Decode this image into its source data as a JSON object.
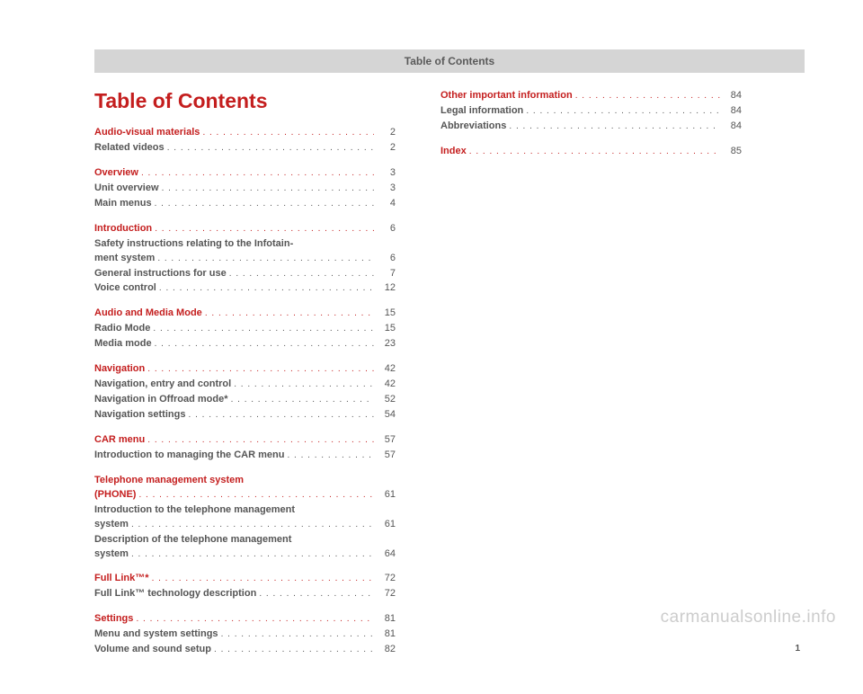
{
  "header": "Table of Contents",
  "title": "Table of Contents",
  "watermark": "carmanualsonline.info",
  "corner_page": "1",
  "colors": {
    "accent": "#c41e1e",
    "text": "#555555",
    "header_bg": "#d5d5d5"
  },
  "col1": [
    {
      "type": "section",
      "label": "Audio-visual materials",
      "page": "2"
    },
    {
      "type": "sub",
      "label": "Related videos",
      "page": "2"
    },
    {
      "type": "gap"
    },
    {
      "type": "section",
      "label": "Overview",
      "page": "3"
    },
    {
      "type": "sub",
      "label": "Unit overview",
      "page": "3"
    },
    {
      "type": "sub",
      "label": "Main menus",
      "page": "4"
    },
    {
      "type": "gap"
    },
    {
      "type": "section",
      "label": "Introduction",
      "page": "6"
    },
    {
      "type": "multiline",
      "line1": "Safety instructions relating to the Infotain-",
      "label": "ment system",
      "page": "6"
    },
    {
      "type": "sub",
      "label": "General instructions for use",
      "page": "7"
    },
    {
      "type": "sub",
      "label": "Voice control",
      "page": "12"
    },
    {
      "type": "gap"
    },
    {
      "type": "section",
      "label": "Audio and Media Mode",
      "page": "15"
    },
    {
      "type": "sub",
      "label": "Radio Mode",
      "page": "15"
    },
    {
      "type": "sub",
      "label": "Media mode",
      "page": "23"
    },
    {
      "type": "gap"
    },
    {
      "type": "section",
      "label": "Navigation",
      "page": "42"
    },
    {
      "type": "sub",
      "label": "Navigation, entry and control",
      "page": "42"
    },
    {
      "type": "sub",
      "label": "Navigation in Offroad mode*",
      "page": "52"
    },
    {
      "type": "sub",
      "label": "Navigation settings",
      "page": "54"
    },
    {
      "type": "gap"
    },
    {
      "type": "section",
      "label": "CAR menu",
      "page": "57"
    },
    {
      "type": "sub",
      "label": "Introduction to managing the CAR menu",
      "page": "57"
    },
    {
      "type": "gap"
    },
    {
      "type": "section-multiline",
      "line1": "Telephone management system",
      "label": "(PHONE)",
      "page": "61"
    },
    {
      "type": "multiline",
      "line1": "Introduction to the telephone management",
      "label": "system",
      "page": "61"
    },
    {
      "type": "multiline",
      "line1": "Description of the telephone management",
      "label": "system",
      "page": "64"
    },
    {
      "type": "gap"
    },
    {
      "type": "section",
      "label": "Full Link™*",
      "page": "72"
    },
    {
      "type": "sub",
      "label": "Full Link™ technology description",
      "page": "72"
    },
    {
      "type": "gap"
    },
    {
      "type": "section",
      "label": "Settings",
      "page": "81"
    },
    {
      "type": "sub",
      "label": "Menu and system settings",
      "page": "81"
    },
    {
      "type": "sub",
      "label": "Volume and sound setup",
      "page": "82"
    }
  ],
  "col2": [
    {
      "type": "section",
      "label": "Other important information",
      "page": "84"
    },
    {
      "type": "sub",
      "label": "Legal information",
      "page": "84"
    },
    {
      "type": "sub",
      "label": "Abbreviations",
      "page": "84"
    },
    {
      "type": "gap"
    },
    {
      "type": "section",
      "label": "Index",
      "page": "85"
    }
  ]
}
